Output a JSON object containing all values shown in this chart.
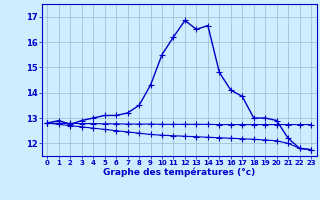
{
  "xlabel": "Graphe des températures (°c)",
  "background_color": "#cceeff",
  "line_color": "#0000cc",
  "grid_color": "#99bbcc",
  "hours": [
    0,
    1,
    2,
    3,
    4,
    5,
    6,
    7,
    8,
    9,
    10,
    11,
    12,
    13,
    14,
    15,
    16,
    17,
    18,
    19,
    20,
    21,
    22,
    23
  ],
  "temp": [
    12.8,
    12.9,
    12.75,
    12.9,
    13.0,
    13.1,
    13.1,
    13.2,
    13.5,
    14.3,
    15.5,
    16.2,
    16.85,
    16.5,
    16.65,
    14.8,
    14.1,
    13.85,
    13.0,
    13.0,
    12.9,
    12.2,
    11.8,
    11.75
  ],
  "temp_min": [
    12.8,
    12.75,
    12.7,
    12.65,
    12.6,
    12.55,
    12.5,
    12.45,
    12.4,
    12.35,
    12.32,
    12.3,
    12.28,
    12.26,
    12.24,
    12.22,
    12.2,
    12.18,
    12.16,
    12.13,
    12.1,
    12.0,
    11.8,
    11.75
  ],
  "temp_flat": [
    12.8,
    12.79,
    12.79,
    12.78,
    12.78,
    12.77,
    12.77,
    12.76,
    12.76,
    12.76,
    12.75,
    12.75,
    12.75,
    12.75,
    12.75,
    12.74,
    12.74,
    12.74,
    12.74,
    12.74,
    12.74,
    12.74,
    12.74,
    12.74
  ],
  "ylim": [
    11.5,
    17.5
  ],
  "yticks": [
    12,
    13,
    14,
    15,
    16,
    17
  ],
  "markersize": 2.0
}
